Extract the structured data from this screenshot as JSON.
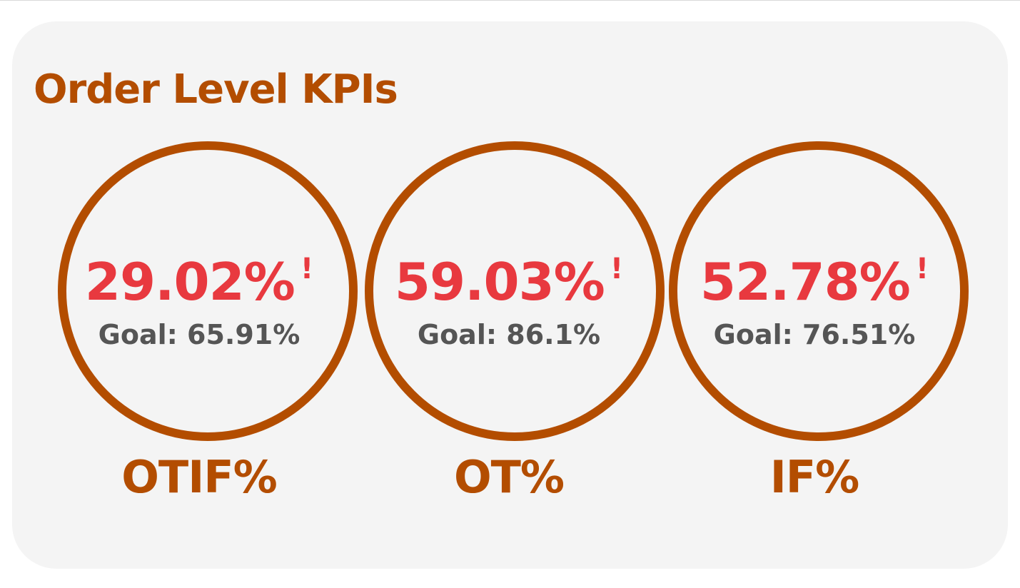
{
  "panel": {
    "title": "Order Level KPIs"
  },
  "kpis": [
    {
      "value": "29.02%",
      "alert": "!",
      "goal": "Goal: 65.91%",
      "label": "OTIF%"
    },
    {
      "value": "59.03%",
      "alert": "!",
      "goal": "Goal: 86.1%",
      "label": "OT%"
    },
    {
      "value": "52.78%",
      "alert": "!",
      "goal": "Goal: 76.51%",
      "label": "IF%"
    }
  ],
  "colors": {
    "accent": "#b34d00",
    "alert": "#e8393f",
    "goal_text": "#555555",
    "card_background": "#f4f4f4"
  },
  "icons": {
    "alert": "exclamation-icon"
  }
}
